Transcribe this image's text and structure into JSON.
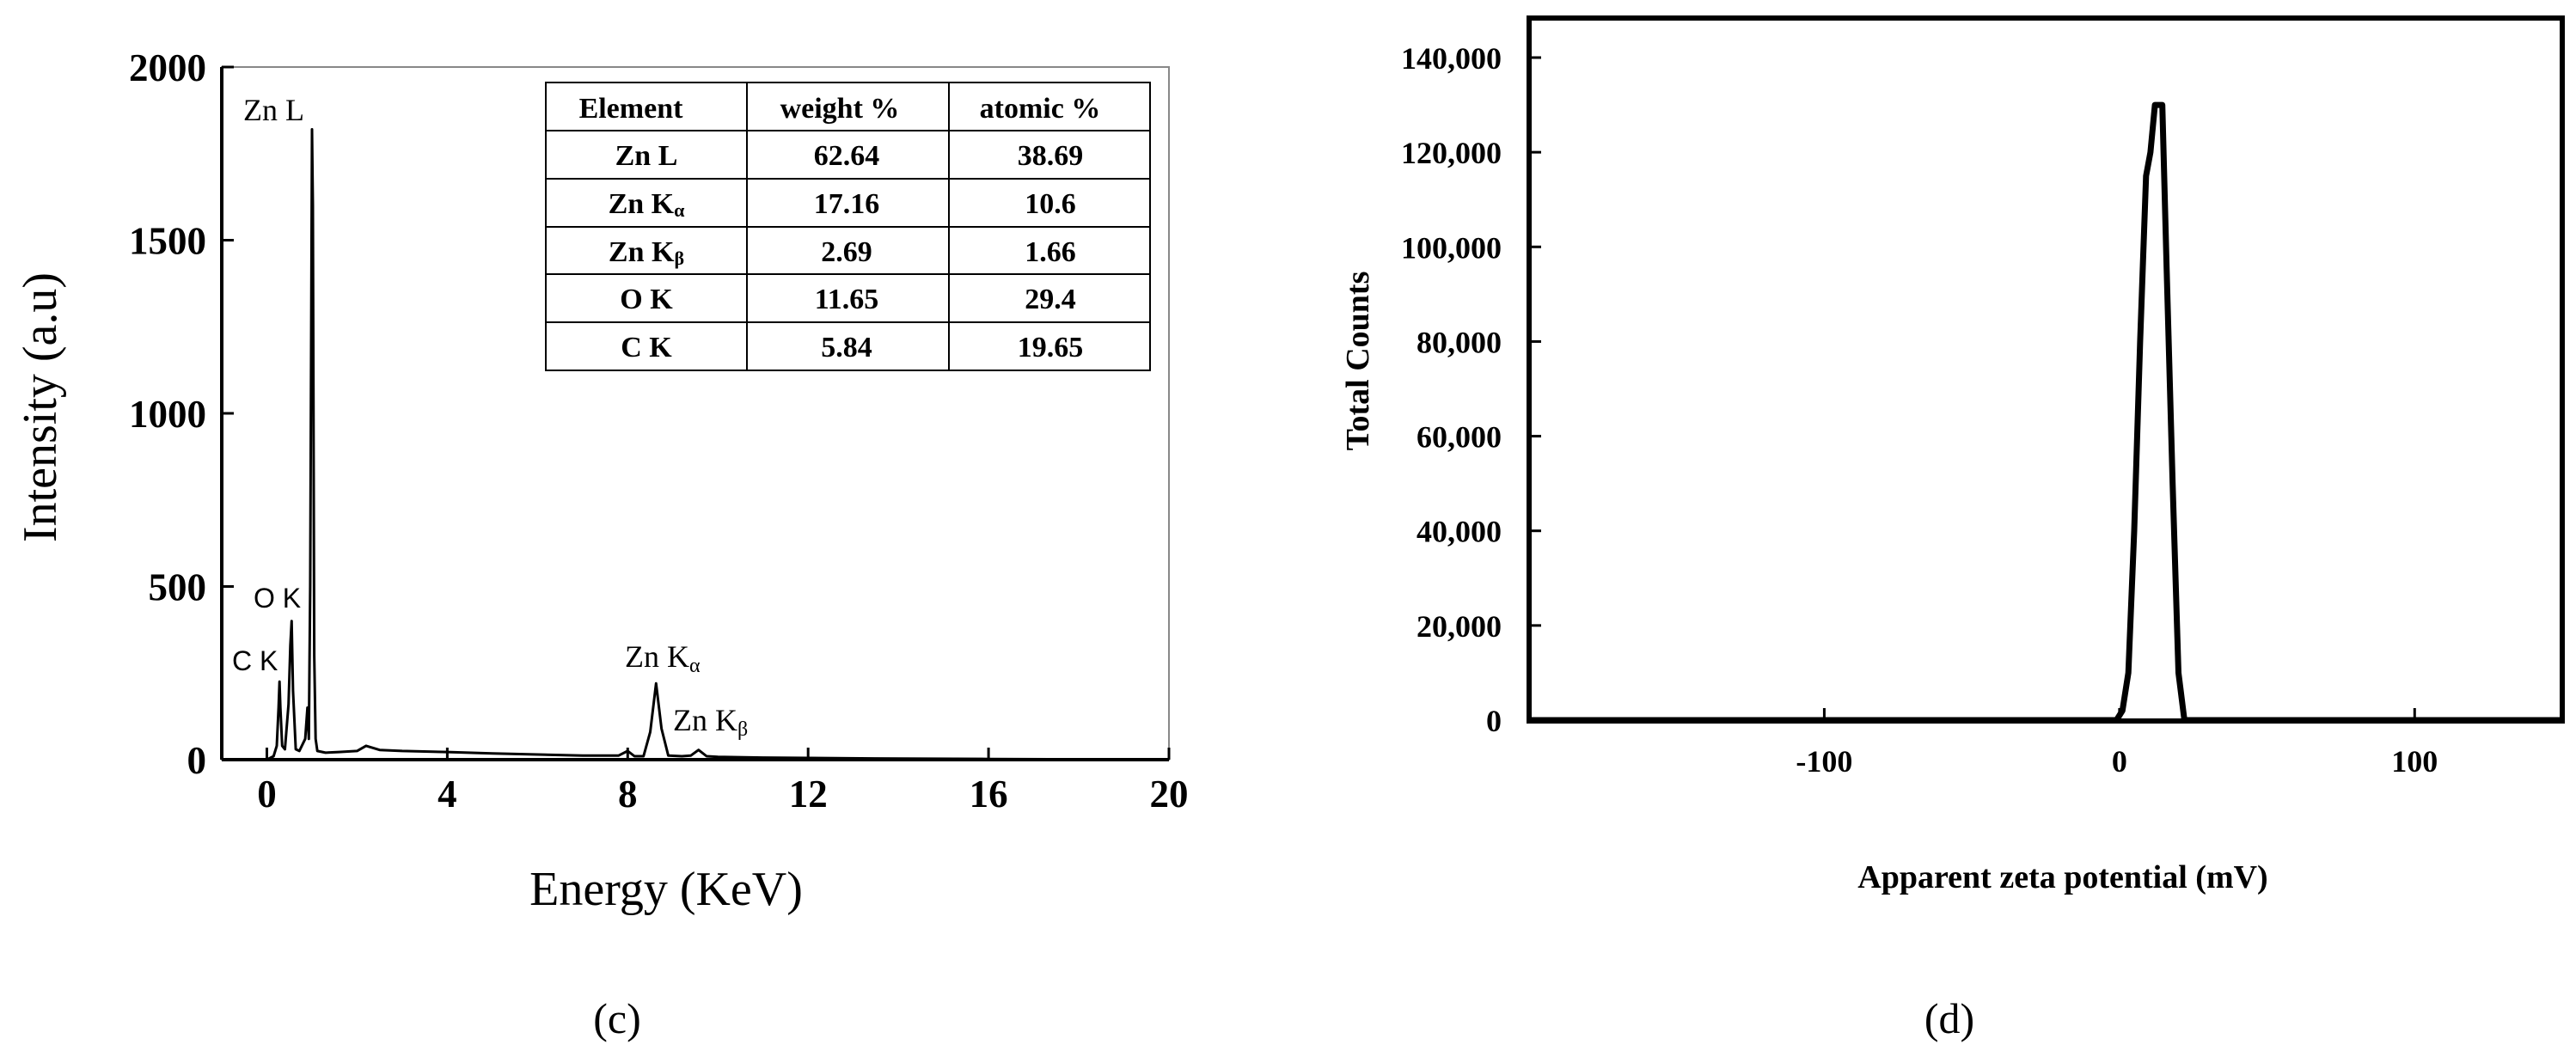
{
  "chart_data": [
    {
      "type": "line",
      "panel_label": "c",
      "xlabel": "Energy (KeV)",
      "ylabel": "Intensity (a.u)",
      "xlim": [
        -1,
        20
      ],
      "ylim": [
        0,
        2000
      ],
      "xticks": [
        0,
        4,
        8,
        12,
        16,
        20
      ],
      "yticks": [
        0,
        500,
        1000,
        1500,
        2000
      ],
      "grid": false,
      "series": [
        {
          "x": [
            0,
            0.15,
            0.22,
            0.26,
            0.28,
            0.3,
            0.34,
            0.4,
            0.48,
            0.52,
            0.55,
            0.58,
            0.64,
            0.72,
            0.85,
            0.9,
            0.93,
            0.96,
            1.0,
            1.02,
            1.05,
            1.08,
            1.12,
            1.3,
            1.6,
            2.0,
            2.2,
            2.5,
            3.0,
            4.0,
            5.0,
            6.0,
            7.0,
            7.8,
            8.0,
            8.15,
            8.35,
            8.5,
            8.63,
            8.75,
            8.9,
            9.2,
            9.4,
            9.57,
            9.75,
            10.0,
            11.0,
            12.0,
            14.0,
            16.0,
            18.0,
            20.0
          ],
          "y": [
            0,
            10,
            40,
            150,
            225,
            150,
            40,
            30,
            160,
            330,
            400,
            200,
            30,
            25,
            60,
            150,
            60,
            500,
            1820,
            1600,
            300,
            60,
            25,
            20,
            22,
            25,
            40,
            28,
            25,
            22,
            18,
            15,
            12,
            12,
            25,
            10,
            10,
            80,
            220,
            90,
            12,
            10,
            12,
            28,
            10,
            8,
            6,
            5,
            3,
            2,
            1,
            0
          ]
        }
      ],
      "annotations": [
        "Zn L",
        "O K",
        "C K",
        "Zn K",
        "Zn K"
      ],
      "annotation_subscripts": [
        "",
        "",
        "",
        "α",
        "β"
      ],
      "table": {
        "columns": [
          "Element",
          "weight %",
          "atomic %"
        ],
        "rows": [
          {
            "element": "Zn L",
            "sub": "",
            "weight": "62.64",
            "atomic": "38.69"
          },
          {
            "element": "Zn K",
            "sub": "α",
            "weight": "17.16",
            "atomic": "10.6"
          },
          {
            "element": "Zn K",
            "sub": "β",
            "weight": "2.69",
            "atomic": "1.66"
          },
          {
            "element": "O K",
            "sub": "",
            "weight": "11.65",
            "atomic": "29.4"
          },
          {
            "element": "C K",
            "sub": "",
            "weight": "5.84",
            "atomic": "19.65"
          }
        ]
      }
    },
    {
      "type": "line",
      "panel_label": "d",
      "xlabel": "Apparent zeta potential (mV)",
      "ylabel": "Total Counts",
      "xlim": [
        -200,
        150
      ],
      "ylim": [
        0,
        140000
      ],
      "xticks": [
        -100,
        0,
        100
      ],
      "yticks": [
        0,
        20000,
        40000,
        60000,
        80000,
        100000,
        120000,
        140000
      ],
      "ytick_labels": [
        "0",
        "20,000",
        "40,000",
        "60,000",
        "80,000",
        "100,000",
        "120,000",
        "140,000"
      ],
      "grid": false,
      "series": [
        {
          "x": [
            -200,
            -1,
            1,
            3,
            5,
            7,
            9,
            10.5,
            12,
            14.5,
            16,
            18,
            20,
            22,
            150
          ],
          "y": [
            0,
            0,
            2000,
            10000,
            40000,
            80000,
            115000,
            120000,
            130000,
            130000,
            95000,
            50000,
            10000,
            0,
            0
          ]
        }
      ]
    }
  ],
  "panel_c_label": "(c)",
  "panel_d_label": "(d)"
}
